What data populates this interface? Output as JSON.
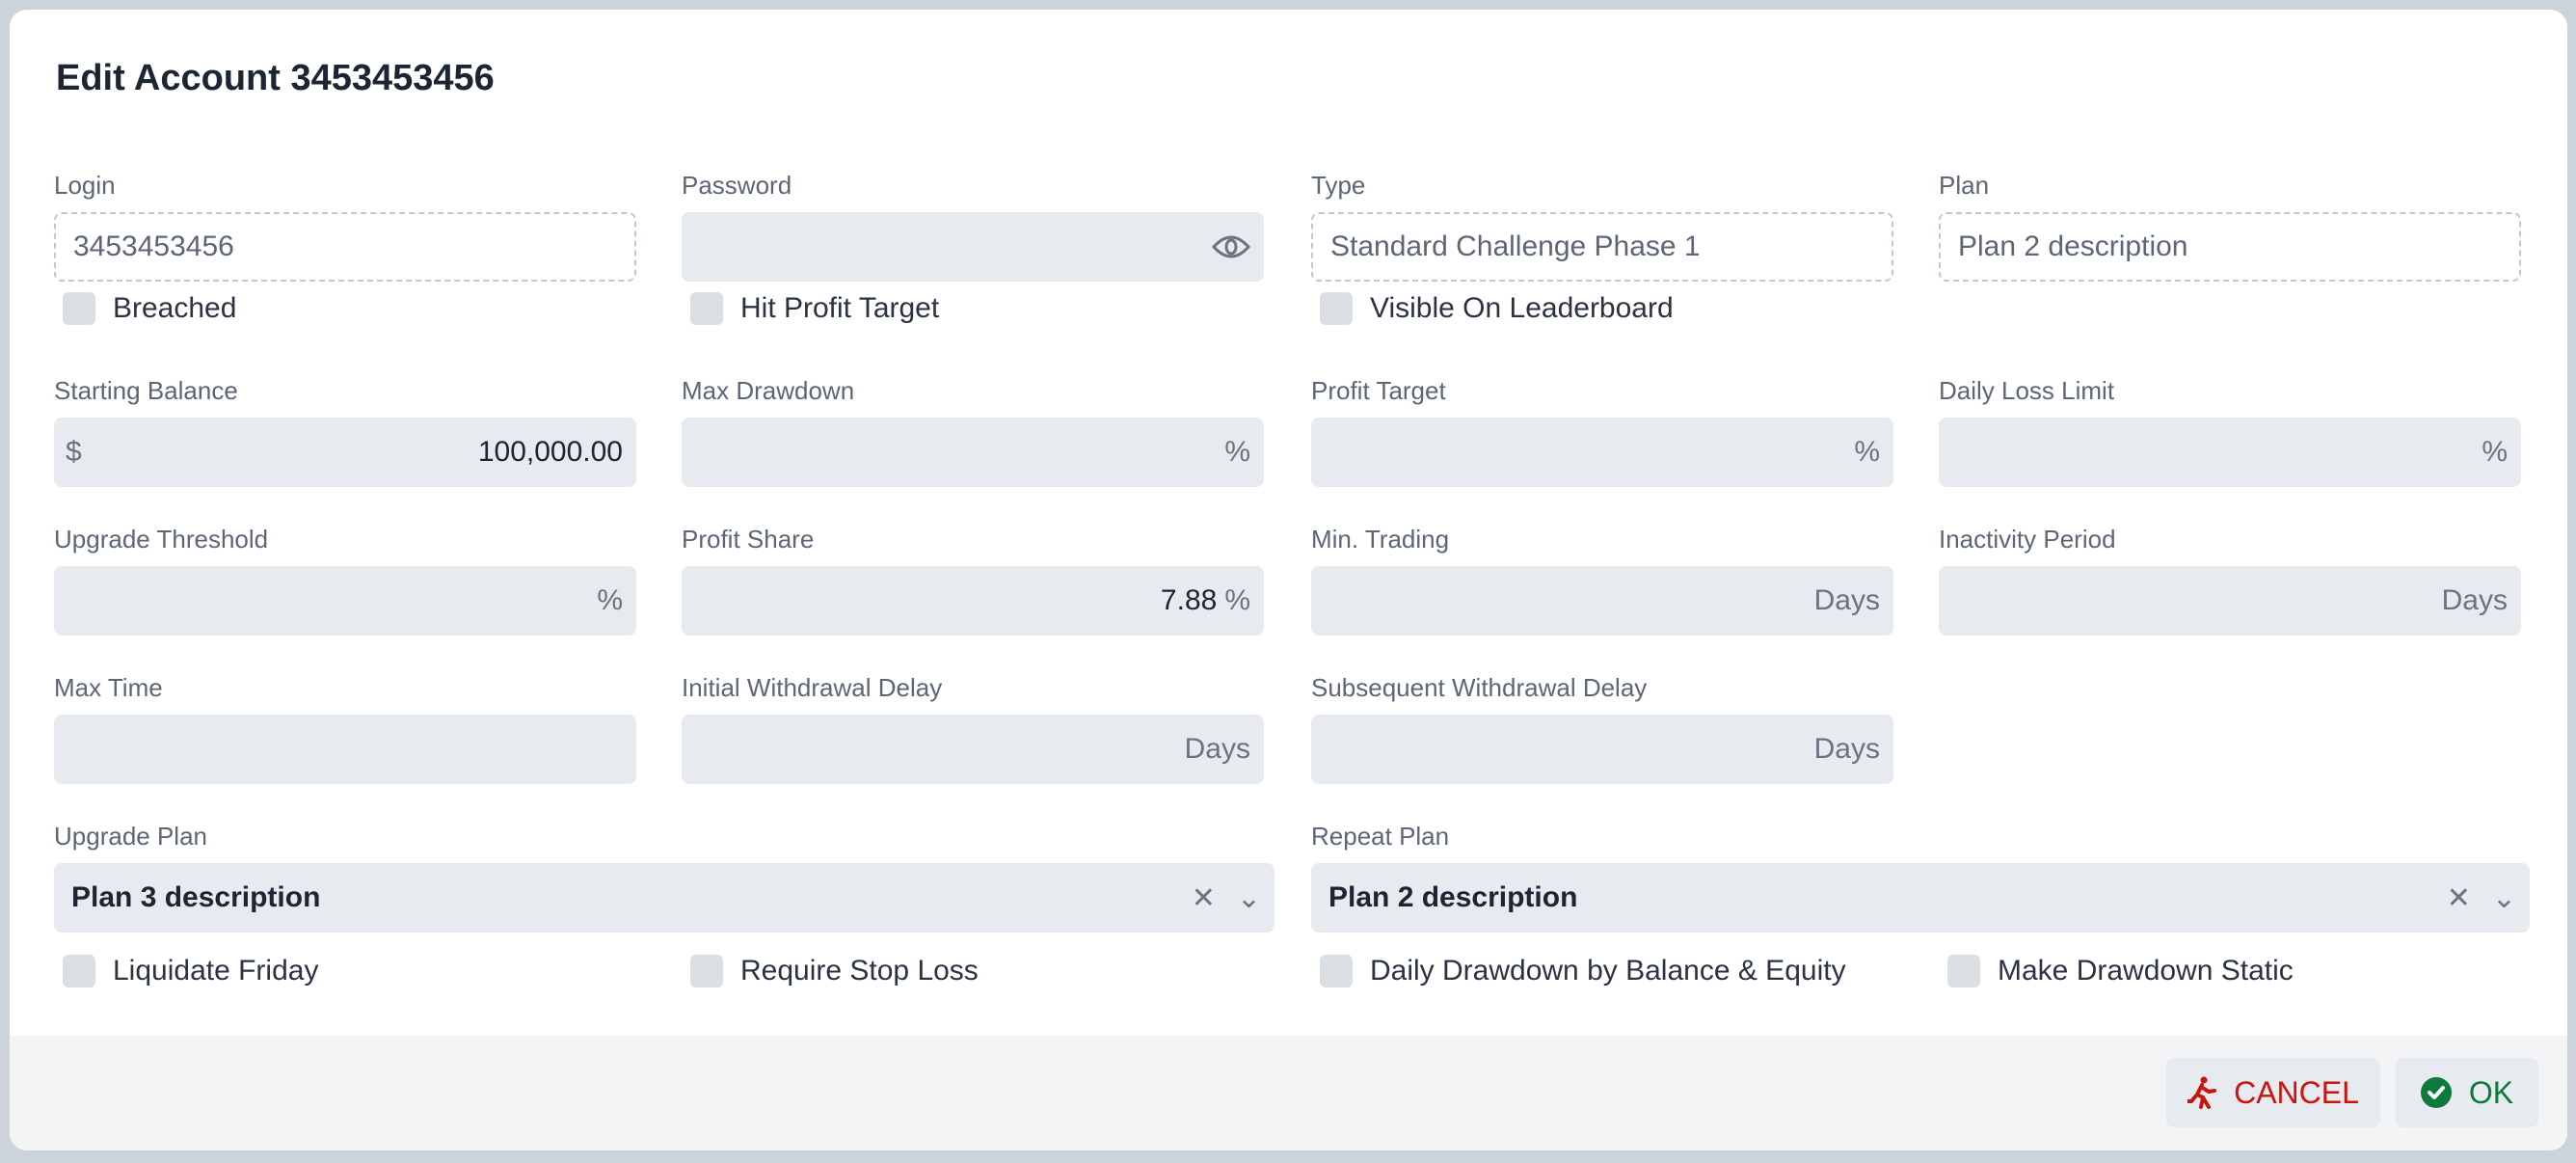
{
  "title": "Edit Account 3453453456",
  "fields": {
    "login": {
      "label": "Login",
      "value": "3453453456"
    },
    "password": {
      "label": "Password",
      "value": ""
    },
    "type": {
      "label": "Type",
      "value": "Standard Challenge Phase 1"
    },
    "plan": {
      "label": "Plan",
      "value": "Plan 2 description"
    },
    "starting_balance": {
      "label": "Starting Balance",
      "prefix": "$",
      "value": "100,000.00"
    },
    "max_drawdown": {
      "label": "Max Drawdown",
      "value": "",
      "unit": "%"
    },
    "profit_target": {
      "label": "Profit Target",
      "value": "",
      "unit": "%"
    },
    "daily_loss_limit": {
      "label": "Daily Loss Limit",
      "value": "",
      "unit": "%"
    },
    "upgrade_threshold": {
      "label": "Upgrade Threshold",
      "value": "",
      "unit": "%"
    },
    "profit_share": {
      "label": "Profit Share",
      "value": "7.88",
      "unit": "%"
    },
    "min_trading": {
      "label": "Min. Trading",
      "value": "",
      "unit": "Days"
    },
    "inactivity_period": {
      "label": "Inactivity Period",
      "value": "",
      "unit": "Days"
    },
    "max_time": {
      "label": "Max Time",
      "value": ""
    },
    "initial_withdrawal_delay": {
      "label": "Initial Withdrawal Delay",
      "value": "",
      "unit": "Days"
    },
    "subsequent_withdrawal_delay": {
      "label": "Subsequent Withdrawal Delay",
      "value": "",
      "unit": "Days"
    },
    "upgrade_plan": {
      "label": "Upgrade Plan",
      "value": "Plan 3 description"
    },
    "repeat_plan": {
      "label": "Repeat Plan",
      "value": "Plan 2 description"
    }
  },
  "checkboxes": {
    "breached": {
      "label": "Breached",
      "checked": false
    },
    "hit_profit_target": {
      "label": "Hit Profit Target",
      "checked": false
    },
    "visible_on_leaderboard": {
      "label": "Visible On Leaderboard",
      "checked": false
    },
    "liquidate_friday": {
      "label": "Liquidate Friday",
      "checked": false
    },
    "require_stop_loss": {
      "label": "Require Stop Loss",
      "checked": false
    },
    "daily_drawdown": {
      "label": "Daily Drawdown by Balance & Equity",
      "checked": false
    },
    "make_drawdown_static": {
      "label": "Make Drawdown Static",
      "checked": false
    }
  },
  "footer": {
    "cancel_label": "CANCEL",
    "ok_label": "OK",
    "cancel_color": "#c8150f",
    "ok_color": "#0c7a3a",
    "cancel_icon": "running-person-icon",
    "ok_icon": "check-circle-icon"
  }
}
